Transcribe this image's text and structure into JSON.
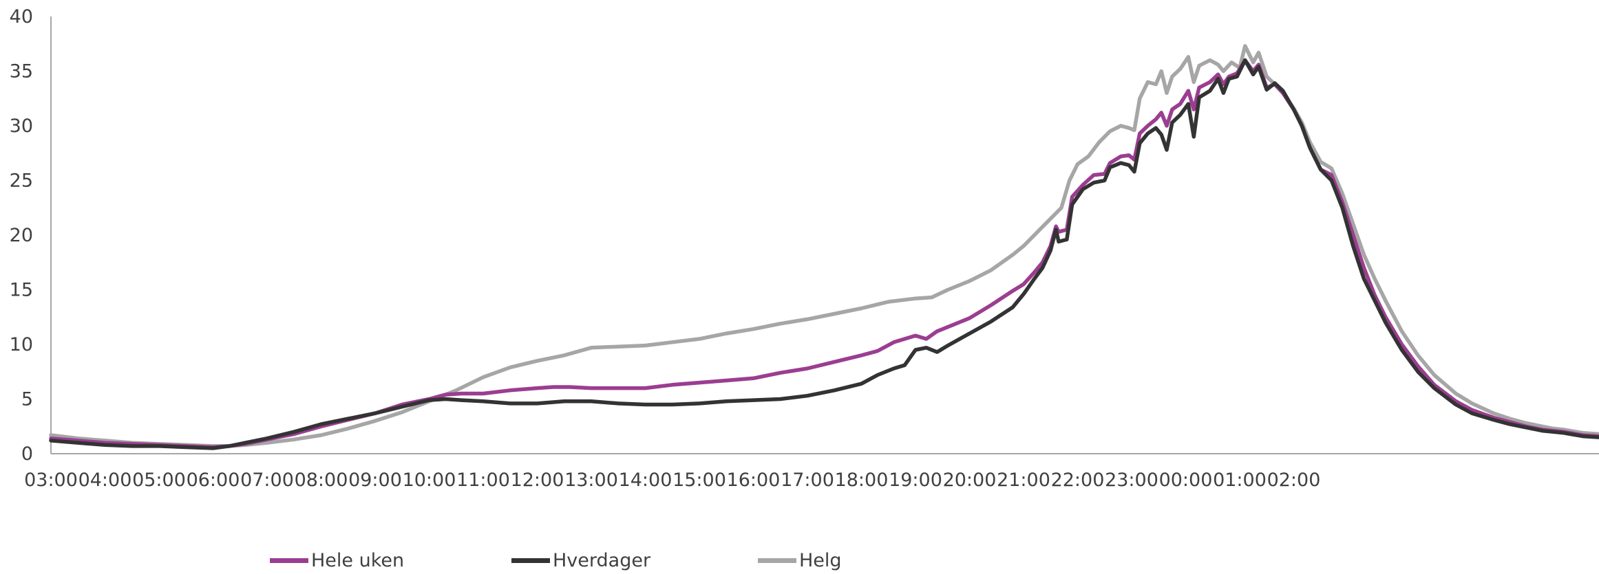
{
  "chart_data": {
    "type": "line",
    "title": "",
    "xlabel": "",
    "ylabel": "",
    "ylim": [
      0,
      40
    ],
    "yticks": [
      0,
      5,
      10,
      15,
      20,
      25,
      30,
      35,
      40
    ],
    "x_tick_labels": [
      "03:00",
      "04:00",
      "05:00",
      "06:00",
      "07:00",
      "08:00",
      "09:00",
      "10:00",
      "11:00",
      "12:00",
      "13:00",
      "14:00",
      "15:00",
      "16:00",
      "17:00",
      "18:00",
      "19:00",
      "20:00",
      "21:00",
      "22:00",
      "23:00",
      "00:00",
      "01:00",
      "02:00"
    ],
    "x_unit": "hours after 03:00",
    "grid": false,
    "legend_position": "bottom",
    "series": [
      {
        "name": "Hele uken",
        "color": "#9b3d91",
        "points": [
          [
            0,
            1.4
          ],
          [
            0.5,
            1.2
          ],
          [
            1,
            1.0
          ],
          [
            1.5,
            0.9
          ],
          [
            2,
            0.8
          ],
          [
            2.5,
            0.7
          ],
          [
            3,
            0.6
          ],
          [
            3.3,
            0.7
          ],
          [
            3.6,
            0.9
          ],
          [
            4,
            1.3
          ],
          [
            4.5,
            1.8
          ],
          [
            5,
            2.5
          ],
          [
            5.5,
            3.1
          ],
          [
            6,
            3.7
          ],
          [
            6.5,
            4.5
          ],
          [
            7,
            5.0
          ],
          [
            7.3,
            5.4
          ],
          [
            7.6,
            5.5
          ],
          [
            8,
            5.5
          ],
          [
            8.5,
            5.8
          ],
          [
            9,
            6.0
          ],
          [
            9.3,
            6.1
          ],
          [
            9.6,
            6.1
          ],
          [
            10,
            6.0
          ],
          [
            10.5,
            6.0
          ],
          [
            11,
            6.0
          ],
          [
            11.5,
            6.3
          ],
          [
            12,
            6.5
          ],
          [
            12.5,
            6.7
          ],
          [
            13,
            6.9
          ],
          [
            13.5,
            7.4
          ],
          [
            14,
            7.8
          ],
          [
            14.5,
            8.4
          ],
          [
            15,
            9.0
          ],
          [
            15.3,
            9.4
          ],
          [
            15.6,
            10.2
          ],
          [
            16,
            10.8
          ],
          [
            16.2,
            10.5
          ],
          [
            16.4,
            11.2
          ],
          [
            16.7,
            11.8
          ],
          [
            17,
            12.4
          ],
          [
            17.4,
            13.6
          ],
          [
            17.8,
            14.9
          ],
          [
            18,
            15.5
          ],
          [
            18.2,
            16.6
          ],
          [
            18.35,
            17.5
          ],
          [
            18.5,
            19.0
          ],
          [
            18.6,
            20.8
          ],
          [
            18.65,
            20.3
          ],
          [
            18.8,
            20.5
          ],
          [
            18.9,
            23.5
          ],
          [
            19.1,
            24.6
          ],
          [
            19.3,
            25.5
          ],
          [
            19.5,
            25.6
          ],
          [
            19.6,
            26.6
          ],
          [
            19.8,
            27.2
          ],
          [
            19.95,
            27.3
          ],
          [
            20.05,
            26.9
          ],
          [
            20.15,
            29.3
          ],
          [
            20.3,
            30.0
          ],
          [
            20.45,
            30.6
          ],
          [
            20.55,
            31.2
          ],
          [
            20.65,
            30.0
          ],
          [
            20.75,
            31.5
          ],
          [
            20.9,
            32.0
          ],
          [
            21.05,
            33.2
          ],
          [
            21.15,
            31.5
          ],
          [
            21.25,
            33.5
          ],
          [
            21.45,
            34.0
          ],
          [
            21.6,
            34.7
          ],
          [
            21.7,
            33.8
          ],
          [
            21.8,
            34.5
          ],
          [
            21.95,
            34.8
          ],
          [
            22.1,
            36.0
          ],
          [
            22.25,
            35.0
          ],
          [
            22.35,
            35.6
          ],
          [
            22.5,
            33.5
          ],
          [
            22.65,
            33.8
          ],
          [
            22.8,
            33.0
          ],
          [
            23,
            31.5
          ],
          [
            23.15,
            30.0
          ],
          [
            23.3,
            28.0
          ],
          [
            23.5,
            26.0
          ],
          [
            23.7,
            25.5
          ],
          [
            23.9,
            23.0
          ],
          [
            24.1,
            20.0
          ],
          [
            24.3,
            17.0
          ],
          [
            24.5,
            14.5
          ],
          [
            24.7,
            12.5
          ],
          [
            25,
            10.0
          ],
          [
            25.3,
            8.0
          ],
          [
            25.6,
            6.3
          ],
          [
            26,
            4.8
          ],
          [
            26.3,
            4.0
          ],
          [
            26.7,
            3.3
          ],
          [
            27,
            2.9
          ],
          [
            27.3,
            2.5
          ],
          [
            27.6,
            2.2
          ],
          [
            27.8,
            2.1
          ],
          [
            28,
            2.0
          ],
          [
            28.35,
            1.7
          ],
          [
            28.65,
            1.6
          ]
        ]
      },
      {
        "name": "Hverdager",
        "color": "#333333",
        "points": [
          [
            0,
            1.2
          ],
          [
            0.5,
            1.0
          ],
          [
            1,
            0.8
          ],
          [
            1.5,
            0.7
          ],
          [
            2,
            0.7
          ],
          [
            2.5,
            0.6
          ],
          [
            3,
            0.5
          ],
          [
            3.3,
            0.7
          ],
          [
            3.6,
            1.0
          ],
          [
            4,
            1.4
          ],
          [
            4.5,
            2.0
          ],
          [
            5,
            2.7
          ],
          [
            5.5,
            3.2
          ],
          [
            6,
            3.7
          ],
          [
            6.5,
            4.3
          ],
          [
            7,
            4.9
          ],
          [
            7.3,
            5.0
          ],
          [
            7.6,
            4.9
          ],
          [
            8,
            4.8
          ],
          [
            8.5,
            4.6
          ],
          [
            9,
            4.6
          ],
          [
            9.5,
            4.8
          ],
          [
            10,
            4.8
          ],
          [
            10.5,
            4.6
          ],
          [
            11,
            4.5
          ],
          [
            11.5,
            4.5
          ],
          [
            12,
            4.6
          ],
          [
            12.5,
            4.8
          ],
          [
            13,
            4.9
          ],
          [
            13.5,
            5.0
          ],
          [
            14,
            5.3
          ],
          [
            14.5,
            5.8
          ],
          [
            15,
            6.4
          ],
          [
            15.3,
            7.2
          ],
          [
            15.6,
            7.8
          ],
          [
            15.8,
            8.1
          ],
          [
            16,
            9.5
          ],
          [
            16.2,
            9.7
          ],
          [
            16.4,
            9.3
          ],
          [
            16.6,
            9.9
          ],
          [
            17,
            11.0
          ],
          [
            17.4,
            12.1
          ],
          [
            17.8,
            13.4
          ],
          [
            18,
            14.6
          ],
          [
            18.2,
            16.0
          ],
          [
            18.35,
            17.0
          ],
          [
            18.5,
            18.6
          ],
          [
            18.6,
            20.5
          ],
          [
            18.65,
            19.4
          ],
          [
            18.8,
            19.6
          ],
          [
            18.9,
            22.8
          ],
          [
            19.1,
            24.2
          ],
          [
            19.3,
            24.8
          ],
          [
            19.5,
            25.0
          ],
          [
            19.6,
            26.2
          ],
          [
            19.8,
            26.6
          ],
          [
            19.95,
            26.4
          ],
          [
            20.05,
            25.8
          ],
          [
            20.15,
            28.4
          ],
          [
            20.3,
            29.3
          ],
          [
            20.45,
            29.8
          ],
          [
            20.55,
            29.2
          ],
          [
            20.65,
            27.8
          ],
          [
            20.75,
            30.3
          ],
          [
            20.9,
            31.0
          ],
          [
            21.05,
            32.0
          ],
          [
            21.15,
            29.0
          ],
          [
            21.25,
            32.6
          ],
          [
            21.45,
            33.2
          ],
          [
            21.6,
            34.3
          ],
          [
            21.7,
            33.0
          ],
          [
            21.8,
            34.3
          ],
          [
            21.95,
            34.5
          ],
          [
            22.1,
            36.0
          ],
          [
            22.25,
            34.7
          ],
          [
            22.35,
            35.4
          ],
          [
            22.5,
            33.3
          ],
          [
            22.65,
            33.9
          ],
          [
            22.8,
            33.2
          ],
          [
            23,
            31.5
          ],
          [
            23.15,
            30.0
          ],
          [
            23.3,
            28.0
          ],
          [
            23.5,
            26.0
          ],
          [
            23.7,
            25.0
          ],
          [
            23.9,
            22.5
          ],
          [
            24.1,
            19.0
          ],
          [
            24.3,
            16.0
          ],
          [
            24.5,
            14.0
          ],
          [
            24.7,
            12.0
          ],
          [
            25,
            9.5
          ],
          [
            25.3,
            7.5
          ],
          [
            25.6,
            6.0
          ],
          [
            26,
            4.5
          ],
          [
            26.3,
            3.7
          ],
          [
            26.7,
            3.1
          ],
          [
            27,
            2.7
          ],
          [
            27.3,
            2.4
          ],
          [
            27.6,
            2.1
          ],
          [
            27.8,
            2.0
          ],
          [
            28,
            1.9
          ],
          [
            28.35,
            1.6
          ],
          [
            28.65,
            1.5
          ]
        ]
      },
      {
        "name": "Helg",
        "color": "#a6a6a6",
        "points": [
          [
            0,
            1.7
          ],
          [
            0.5,
            1.4
          ],
          [
            1,
            1.2
          ],
          [
            1.5,
            1.0
          ],
          [
            2,
            0.9
          ],
          [
            2.5,
            0.8
          ],
          [
            3,
            0.7
          ],
          [
            3.3,
            0.7
          ],
          [
            3.6,
            0.8
          ],
          [
            4,
            1.0
          ],
          [
            4.5,
            1.3
          ],
          [
            5,
            1.7
          ],
          [
            5.5,
            2.3
          ],
          [
            6,
            3.0
          ],
          [
            6.5,
            3.8
          ],
          [
            7,
            4.8
          ],
          [
            7.5,
            5.8
          ],
          [
            8,
            7.0
          ],
          [
            8.5,
            7.9
          ],
          [
            9,
            8.5
          ],
          [
            9.5,
            9.0
          ],
          [
            10,
            9.7
          ],
          [
            10.5,
            9.8
          ],
          [
            11,
            9.9
          ],
          [
            11.5,
            10.2
          ],
          [
            12,
            10.5
          ],
          [
            12.5,
            11.0
          ],
          [
            13,
            11.4
          ],
          [
            13.5,
            11.9
          ],
          [
            14,
            12.3
          ],
          [
            14.5,
            12.8
          ],
          [
            15,
            13.3
          ],
          [
            15.5,
            13.9
          ],
          [
            16,
            14.2
          ],
          [
            16.3,
            14.3
          ],
          [
            16.6,
            15.0
          ],
          [
            17,
            15.8
          ],
          [
            17.4,
            16.8
          ],
          [
            17.8,
            18.2
          ],
          [
            18,
            19.0
          ],
          [
            18.3,
            20.5
          ],
          [
            18.5,
            21.5
          ],
          [
            18.7,
            22.5
          ],
          [
            18.85,
            25.0
          ],
          [
            19.0,
            26.5
          ],
          [
            19.2,
            27.2
          ],
          [
            19.4,
            28.5
          ],
          [
            19.6,
            29.5
          ],
          [
            19.8,
            30.0
          ],
          [
            19.95,
            29.8
          ],
          [
            20.05,
            29.6
          ],
          [
            20.15,
            32.5
          ],
          [
            20.3,
            34.0
          ],
          [
            20.45,
            33.8
          ],
          [
            20.55,
            35.0
          ],
          [
            20.65,
            33.0
          ],
          [
            20.75,
            34.5
          ],
          [
            20.9,
            35.2
          ],
          [
            21.05,
            36.3
          ],
          [
            21.15,
            34.0
          ],
          [
            21.25,
            35.5
          ],
          [
            21.45,
            36.0
          ],
          [
            21.6,
            35.6
          ],
          [
            21.7,
            35.0
          ],
          [
            21.85,
            35.8
          ],
          [
            22.0,
            35.3
          ],
          [
            22.1,
            37.3
          ],
          [
            22.25,
            35.8
          ],
          [
            22.35,
            36.7
          ],
          [
            22.5,
            34.5
          ],
          [
            22.65,
            33.8
          ],
          [
            22.8,
            33.0
          ],
          [
            23,
            31.6
          ],
          [
            23.15,
            30.3
          ],
          [
            23.3,
            28.5
          ],
          [
            23.5,
            26.7
          ],
          [
            23.7,
            26.1
          ],
          [
            23.9,
            23.8
          ],
          [
            24.1,
            21.0
          ],
          [
            24.3,
            18.2
          ],
          [
            24.5,
            16.0
          ],
          [
            24.7,
            14.0
          ],
          [
            25,
            11.2
          ],
          [
            25.3,
            9.0
          ],
          [
            25.6,
            7.2
          ],
          [
            26,
            5.5
          ],
          [
            26.3,
            4.6
          ],
          [
            26.7,
            3.7
          ],
          [
            27,
            3.2
          ],
          [
            27.3,
            2.8
          ],
          [
            27.6,
            2.5
          ],
          [
            27.8,
            2.3
          ],
          [
            28,
            2.2
          ],
          [
            28.35,
            1.9
          ],
          [
            28.65,
            1.8
          ]
        ]
      }
    ]
  }
}
